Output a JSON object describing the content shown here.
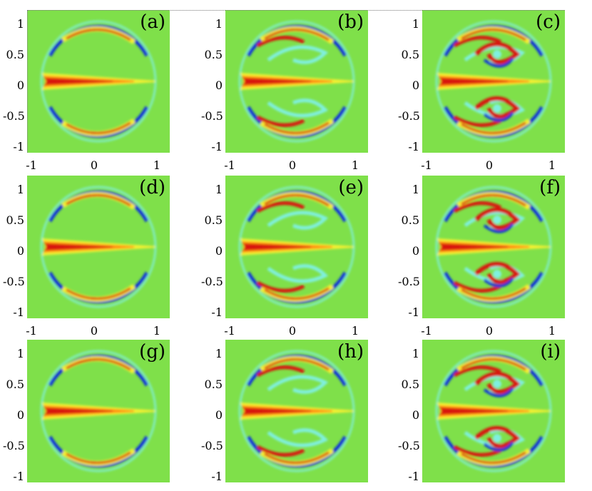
{
  "panels": [
    {
      "label": "(a)",
      "row": 0,
      "col": 0,
      "stage": 0
    },
    {
      "label": "(b)",
      "row": 0,
      "col": 1,
      "stage": 1
    },
    {
      "label": "(c)",
      "row": 0,
      "col": 2,
      "stage": 2
    },
    {
      "label": "(d)",
      "row": 1,
      "col": 0,
      "stage": 0
    },
    {
      "label": "(e)",
      "row": 1,
      "col": 1,
      "stage": 1
    },
    {
      "label": "(f)",
      "row": 1,
      "col": 2,
      "stage": 2
    },
    {
      "label": "(g)",
      "row": 2,
      "col": 0,
      "stage": 0
    },
    {
      "label": "(h)",
      "row": 2,
      "col": 1,
      "stage": 1
    },
    {
      "label": "(i)",
      "row": 2,
      "col": 2,
      "stage": 2
    }
  ],
  "y_ticks": [
    "1",
    "0.5",
    "0",
    "-0.5",
    "-1"
  ],
  "x_ticks": [
    "-1",
    "0",
    "1"
  ],
  "colors": {
    "background": "#7fe04a",
    "red": "#d8140a",
    "orange": "#ff8c10",
    "yellow": "#f5f030",
    "cyan": "#7ff0e0",
    "blue": "#1030d8"
  }
}
